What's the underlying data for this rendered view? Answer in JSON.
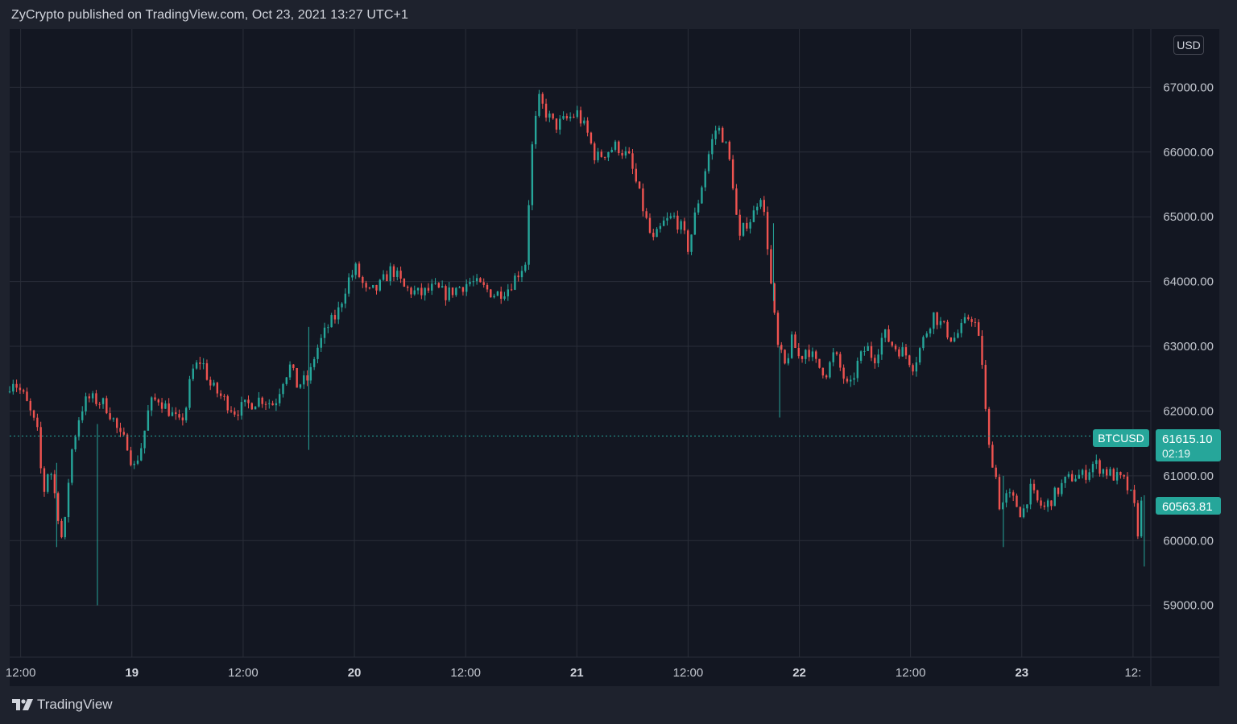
{
  "header": {
    "published_line": "ZyCrypto published on TradingView.com, Oct 23, 2021 13:27 UTC+1"
  },
  "footer": {
    "brand": "TradingView",
    "logo_icon": "tradingview-logo-icon"
  },
  "currency_badge": "USD",
  "colors": {
    "background": "#131722",
    "frame": "#1e222d",
    "grid": "#2a2e39",
    "up": "#26a69a",
    "down": "#ef5350",
    "price_line": "#26a69a"
  },
  "price_labels": {
    "symbol": "BTCUSD",
    "last_price": "61615.10",
    "countdown": "02:19",
    "current_price": "60563.81"
  },
  "chart_data": {
    "type": "candlestick",
    "title": "",
    "symbol": "BTCUSD",
    "ylim": [
      58200,
      67900
    ],
    "y_ticks": [
      "59000.00",
      "60000.00",
      "61000.00",
      "62000.00",
      "63000.00",
      "64000.00",
      "65000.00",
      "66000.00",
      "67000.00"
    ],
    "x_ticks": [
      {
        "label": "12:00",
        "bold": false
      },
      {
        "label": "19",
        "bold": true
      },
      {
        "label": "12:00",
        "bold": false
      },
      {
        "label": "20",
        "bold": true
      },
      {
        "label": "12:00",
        "bold": false
      },
      {
        "label": "21",
        "bold": true
      },
      {
        "label": "12:00",
        "bold": false
      },
      {
        "label": "22",
        "bold": true
      },
      {
        "label": "12:00",
        "bold": false
      },
      {
        "label": "23",
        "bold": true
      },
      {
        "label": "12:",
        "bold": false
      }
    ],
    "grid": true,
    "last_price_line": 61615.1,
    "price_path": [
      [
        0,
        62300
      ],
      [
        0.5,
        62500
      ],
      [
        1.5,
        62200
      ],
      [
        2.5,
        61700
      ],
      [
        3,
        60700
      ],
      [
        3.5,
        61200
      ],
      [
        4.2,
        60400
      ],
      [
        4.6,
        59900
      ],
      [
        5.2,
        61300
      ],
      [
        6,
        62000
      ],
      [
        6.6,
        62200
      ],
      [
        7.5,
        62150
      ],
      [
        8,
        62100
      ],
      [
        8.6,
        61900
      ],
      [
        9.2,
        61600
      ],
      [
        9.8,
        61500
      ],
      [
        10.3,
        61100
      ],
      [
        11,
        61500
      ],
      [
        11.6,
        62100
      ],
      [
        12.3,
        62200
      ],
      [
        13.2,
        62000
      ],
      [
        14,
        61800
      ],
      [
        14.5,
        62000
      ],
      [
        15,
        62600
      ],
      [
        15.8,
        62800
      ],
      [
        16.5,
        62400
      ],
      [
        17.5,
        62200
      ],
      [
        18.5,
        62000
      ],
      [
        19.6,
        62100
      ],
      [
        20.6,
        62200
      ],
      [
        21.7,
        62100
      ],
      [
        22.4,
        62500
      ],
      [
        23,
        62700
      ],
      [
        23.5,
        62400
      ],
      [
        24.5,
        62500
      ],
      [
        25,
        62900
      ],
      [
        26,
        63300
      ],
      [
        26.8,
        63500
      ],
      [
        27.6,
        64000
      ],
      [
        28.3,
        64200
      ],
      [
        29.2,
        63800
      ],
      [
        30.1,
        63900
      ],
      [
        31.2,
        64200
      ],
      [
        32.2,
        63900
      ],
      [
        33.5,
        63800
      ],
      [
        34.6,
        63900
      ],
      [
        35.6,
        63800
      ],
      [
        36.5,
        63900
      ],
      [
        37.6,
        64000
      ],
      [
        38.6,
        63900
      ],
      [
        39.6,
        63800
      ],
      [
        40.6,
        63900
      ],
      [
        41.3,
        64100
      ],
      [
        42,
        64300
      ],
      [
        42.3,
        65300
      ],
      [
        42.6,
        66200
      ],
      [
        43.1,
        66800
      ],
      [
        43.7,
        66600
      ],
      [
        44.4,
        66400
      ],
      [
        45.3,
        66500
      ],
      [
        46.2,
        66600
      ],
      [
        47,
        66300
      ],
      [
        47.7,
        65900
      ],
      [
        48.5,
        66000
      ],
      [
        49.4,
        66100
      ],
      [
        50.4,
        65900
      ],
      [
        51,
        65500
      ],
      [
        51.7,
        65000
      ],
      [
        52.3,
        64600
      ],
      [
        53.2,
        64900
      ],
      [
        54,
        65000
      ],
      [
        54.7,
        64800
      ],
      [
        55.2,
        64500
      ],
      [
        55.6,
        64900
      ],
      [
        56.4,
        65600
      ],
      [
        57,
        66100
      ],
      [
        57.5,
        66400
      ],
      [
        58.1,
        66200
      ],
      [
        58.7,
        65700
      ],
      [
        59.3,
        64600
      ],
      [
        59.8,
        64900
      ],
      [
        60.4,
        65000
      ],
      [
        61,
        65400
      ],
      [
        61.5,
        64800
      ],
      [
        61.9,
        63900
      ],
      [
        62.4,
        63000
      ],
      [
        63,
        62700
      ],
      [
        63.6,
        63100
      ],
      [
        64.2,
        62800
      ],
      [
        64.8,
        63000
      ],
      [
        65.6,
        62700
      ],
      [
        66.4,
        62600
      ],
      [
        67,
        62900
      ],
      [
        67.6,
        62600
      ],
      [
        68.2,
        62300
      ],
      [
        68.8,
        62700
      ],
      [
        69.6,
        63000
      ],
      [
        70.2,
        62800
      ],
      [
        71,
        63200
      ],
      [
        71.8,
        63000
      ],
      [
        72.7,
        62900
      ],
      [
        73.4,
        62700
      ],
      [
        74.2,
        63100
      ],
      [
        75,
        63500
      ],
      [
        75.8,
        63300
      ],
      [
        76.6,
        63100
      ],
      [
        77.4,
        63300
      ],
      [
        78,
        63500
      ],
      [
        78.5,
        63300
      ],
      [
        79,
        62700
      ],
      [
        79.4,
        61500
      ],
      [
        80,
        61100
      ],
      [
        80.4,
        60500
      ],
      [
        81,
        60700
      ],
      [
        81.6,
        60600
      ],
      [
        82.2,
        60400
      ],
      [
        82.8,
        60800
      ],
      [
        83.4,
        60600
      ],
      [
        84,
        60500
      ],
      [
        84.8,
        60700
      ],
      [
        85.6,
        60900
      ],
      [
        86.4,
        61000
      ],
      [
        87.2,
        61000
      ],
      [
        88,
        61200
      ],
      [
        88.7,
        61100
      ],
      [
        89.6,
        61000
      ],
      [
        90.5,
        60900
      ],
      [
        91.2,
        60600
      ],
      [
        91.6,
        60100
      ],
      [
        91.8,
        60563.81
      ]
    ],
    "wicks": [
      {
        "at": 7.1,
        "low": 59000,
        "high": 61800
      },
      {
        "at": 3.8,
        "low": 59900,
        "high": 61200
      },
      {
        "at": 24.2,
        "low": 61400,
        "high": 63300
      },
      {
        "at": 61.8,
        "low": 63700,
        "high": 64900
      },
      {
        "at": 62.3,
        "low": 61900,
        "high": 63000
      },
      {
        "at": 80.4,
        "low": 59900,
        "high": 61000
      },
      {
        "at": 91.8,
        "low": 59600,
        "high": 60700
      }
    ]
  }
}
